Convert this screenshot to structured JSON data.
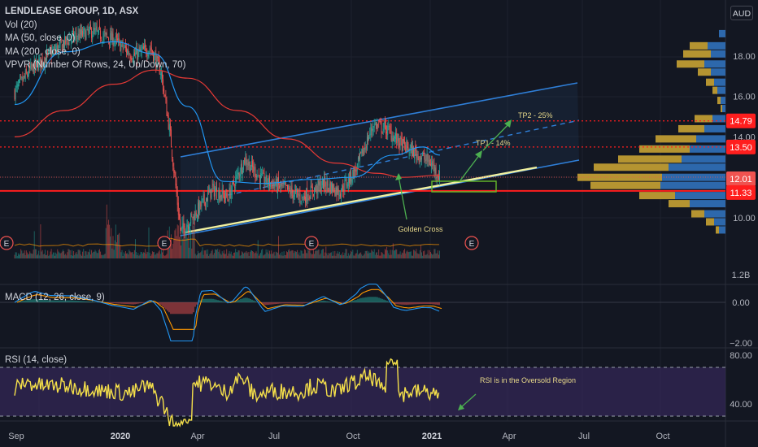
{
  "legend": {
    "title": "LENDLEASE GROUP, 1D, ASX",
    "lines": [
      "Vol (20)",
      "MA (50, close, 0)",
      "MA (200, close, 0)",
      "VPVR (Number Of Rows, 24, Up/Down, 70)"
    ]
  },
  "currency": "AUD",
  "macd_label": "MACD (12, 26, close, 9)",
  "rsi_label": "RSI (14, close)",
  "annotations": {
    "golden_cross": "Golden Cross",
    "tp1": "TP1 - 14%",
    "tp2": "TP2 - 25%",
    "rsi_note": "RSI is in the Oversold Region"
  },
  "earnings_marker": "E",
  "colors": {
    "background": "#131722",
    "candle_up": "#26a69a",
    "candle_down": "#ef5350",
    "ma50": "#2196f3",
    "ma200": "#e53935",
    "channel": "#2f7fd8",
    "support": "#f1f1a0",
    "level_red": "#ff1e1e",
    "vp_up": "#2e6db4",
    "vp_down": "#c8a233",
    "annotation": "#4caf50",
    "rsi": "#f5e04a",
    "rsi_band": "#3b2a63",
    "macd_line": "#2196f3",
    "signal_line": "#ff9800"
  },
  "chart_data": [
    {
      "type": "candlestick",
      "title": "LENDLEASE GROUP, 1D, ASX",
      "y_axis_ticks": [
        18.0,
        16.0,
        14.0,
        12.0,
        10.0
      ],
      "x_axis_ticks": [
        "Sep",
        "2020",
        "Apr",
        "Jul",
        "Oct",
        "2021",
        "Apr",
        "Jul",
        "Oct"
      ],
      "price_labels": [
        {
          "value": "14.79",
          "color": "#ff1e1e"
        },
        {
          "value": "13.50",
          "color": "#ff1e1e"
        },
        {
          "value": "12.01",
          "color": "#ef5350"
        },
        {
          "value": "11.33",
          "color": "#ff1e1e"
        }
      ],
      "volume_axis_tick": "1.2B",
      "key_levels": [
        14.79,
        13.5,
        12.01,
        11.33
      ],
      "price_path": [
        [
          "2019-09-01",
          16.2
        ],
        [
          "2019-09-20",
          17.3
        ],
        [
          "2019-10-15",
          18.1
        ],
        [
          "2019-11-10",
          18.9
        ],
        [
          "2019-12-05",
          19.2
        ],
        [
          "2020-01-01",
          18.8
        ],
        [
          "2020-01-25",
          18.0
        ],
        [
          "2020-02-15",
          18.4
        ],
        [
          "2020-02-28",
          17.2
        ],
        [
          "2020-03-10",
          14.2
        ],
        [
          "2020-03-23",
          9.3
        ],
        [
          "2020-04-10",
          10.2
        ],
        [
          "2020-05-01",
          11.4
        ],
        [
          "2020-05-20",
          11.0
        ],
        [
          "2020-06-10",
          12.9
        ],
        [
          "2020-07-01",
          11.9
        ],
        [
          "2020-07-25",
          11.5
        ],
        [
          "2020-08-20",
          11.0
        ],
        [
          "2020-09-15",
          11.7
        ],
        [
          "2020-10-05",
          11.3
        ],
        [
          "2020-10-25",
          12.4
        ],
        [
          "2020-11-15",
          14.6
        ],
        [
          "2020-12-01",
          14.4
        ],
        [
          "2020-12-20",
          13.6
        ],
        [
          "2021-01-10",
          13.1
        ],
        [
          "2021-01-25",
          12.7
        ],
        [
          "2021-02-05",
          12.0
        ]
      ],
      "ma50_path": [
        [
          "2019-09-01",
          15.6
        ],
        [
          "2019-11-01",
          18.2
        ],
        [
          "2020-01-01",
          18.7
        ],
        [
          "2020-02-20",
          18.1
        ],
        [
          "2020-04-01",
          15.5
        ],
        [
          "2020-05-15",
          11.8
        ],
        [
          "2020-07-01",
          11.7
        ],
        [
          "2020-09-01",
          11.9
        ],
        [
          "2020-10-20",
          12.0
        ],
        [
          "2020-12-10",
          13.1
        ],
        [
          "2021-01-15",
          13.5
        ],
        [
          "2021-02-05",
          13.1
        ]
      ],
      "ma200_path": [
        [
          "2019-09-01",
          14.0
        ],
        [
          "2019-11-01",
          15.3
        ],
        [
          "2020-01-01",
          16.6
        ],
        [
          "2020-02-20",
          17.3
        ],
        [
          "2020-04-01",
          16.9
        ],
        [
          "2020-06-01",
          15.3
        ],
        [
          "2020-08-01",
          13.9
        ],
        [
          "2020-10-01",
          12.7
        ],
        [
          "2020-11-20",
          12.2
        ],
        [
          "2020-12-20",
          12.0
        ],
        [
          "2021-02-05",
          12.1
        ]
      ],
      "projection": {
        "tp1_target": 13.5,
        "tp2_target": 14.79
      }
    },
    {
      "type": "line",
      "title": "MACD (12, 26, close, 9)",
      "y_axis_ticks": [
        0.0,
        -2.0
      ]
    },
    {
      "type": "line",
      "title": "RSI (14, close)",
      "y_axis_ticks": [
        80.0,
        40.0
      ],
      "bands": [
        70,
        30
      ]
    }
  ]
}
